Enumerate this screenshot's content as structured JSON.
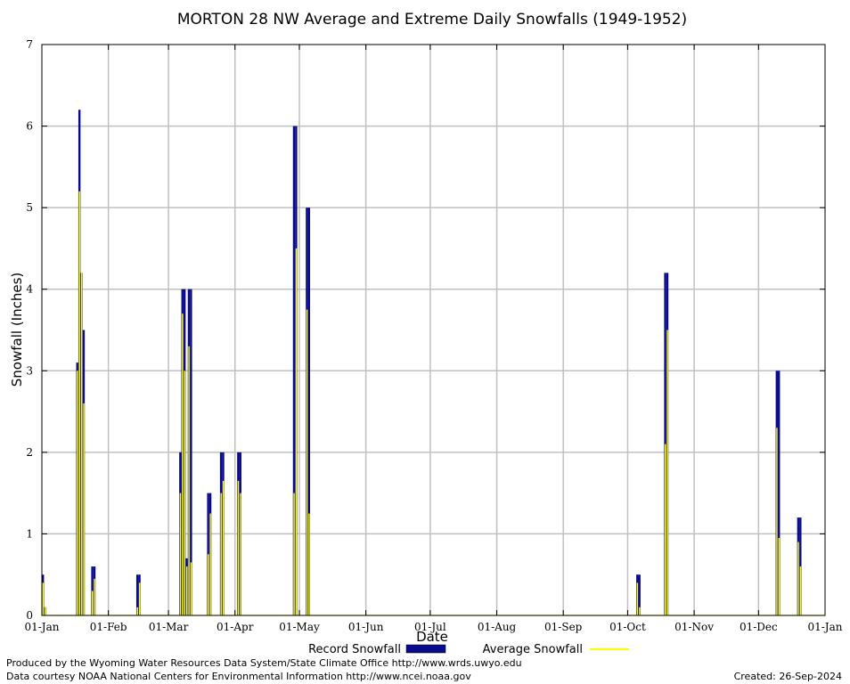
{
  "chart_data": {
    "type": "bar",
    "title": "MORTON 28 NW Average and Extreme Daily Snowfalls (1949-1952)",
    "xlabel": "Date",
    "ylabel": "Snowfall (Inches)",
    "ylim": [
      0,
      7
    ],
    "yticks": [
      "0",
      "1",
      "2",
      "3",
      "4",
      "5",
      "6",
      "7"
    ],
    "x_domain": [
      "01-Jan",
      "01-Jan"
    ],
    "xticks": [
      "01-Jan",
      "01-Feb",
      "01-Mar",
      "01-Apr",
      "01-May",
      "01-Jun",
      "01-Jul",
      "01-Aug",
      "01-Sep",
      "01-Oct",
      "01-Nov",
      "01-Dec",
      "01-Jan"
    ],
    "grid": true,
    "legend_position": "bottom",
    "legend": [
      "Record Snowfall",
      "Average Snowfall"
    ],
    "colors": {
      "record": "#0a0a8c",
      "average": "#ffff00",
      "grid": "#c0c0c0",
      "axis": "#000000"
    },
    "series": [
      {
        "name": "Record Snowfall",
        "points": [
          {
            "date": "01-Jan",
            "value": 0.5
          },
          {
            "date": "02-Jan",
            "value": 0.1
          },
          {
            "date": "17-Jan",
            "value": 3.1
          },
          {
            "date": "18-Jan",
            "value": 6.2
          },
          {
            "date": "19-Jan",
            "value": 4.2
          },
          {
            "date": "20-Jan",
            "value": 3.5
          },
          {
            "date": "24-Jan",
            "value": 0.6
          },
          {
            "date": "25-Jan",
            "value": 0.6
          },
          {
            "date": "14-Feb",
            "value": 0.5
          },
          {
            "date": "15-Feb",
            "value": 0.5
          },
          {
            "date": "06-Mar",
            "value": 2.0
          },
          {
            "date": "07-Mar",
            "value": 4.0
          },
          {
            "date": "08-Mar",
            "value": 4.0
          },
          {
            "date": "09-Mar",
            "value": 0.7
          },
          {
            "date": "10-Mar",
            "value": 4.0
          },
          {
            "date": "11-Mar",
            "value": 4.0
          },
          {
            "date": "19-Mar",
            "value": 1.5
          },
          {
            "date": "20-Mar",
            "value": 1.5
          },
          {
            "date": "25-Mar",
            "value": 2.0
          },
          {
            "date": "26-Mar",
            "value": 2.0
          },
          {
            "date": "02-Apr",
            "value": 2.0
          },
          {
            "date": "03-Apr",
            "value": 2.0
          },
          {
            "date": "28-Apr",
            "value": 6.0
          },
          {
            "date": "29-Apr",
            "value": 6.0
          },
          {
            "date": "04-May",
            "value": 5.0
          },
          {
            "date": "05-May",
            "value": 5.0
          },
          {
            "date": "05-Oct",
            "value": 0.5
          },
          {
            "date": "06-Oct",
            "value": 0.5
          },
          {
            "date": "18-Oct",
            "value": 4.2
          },
          {
            "date": "19-Oct",
            "value": 4.2
          },
          {
            "date": "09-Dec",
            "value": 3.0
          },
          {
            "date": "10-Dec",
            "value": 3.0
          },
          {
            "date": "19-Dec",
            "value": 1.2
          },
          {
            "date": "20-Dec",
            "value": 1.2
          }
        ]
      },
      {
        "name": "Average Snowfall",
        "points": [
          {
            "date": "01-Jan",
            "value": 0.4
          },
          {
            "date": "02-Jan",
            "value": 0.1
          },
          {
            "date": "17-Jan",
            "value": 3.0
          },
          {
            "date": "18-Jan",
            "value": 5.2
          },
          {
            "date": "19-Jan",
            "value": 4.2
          },
          {
            "date": "20-Jan",
            "value": 2.6
          },
          {
            "date": "24-Jan",
            "value": 0.3
          },
          {
            "date": "25-Jan",
            "value": 0.45
          },
          {
            "date": "14-Feb",
            "value": 0.1
          },
          {
            "date": "15-Feb",
            "value": 0.4
          },
          {
            "date": "06-Mar",
            "value": 1.5
          },
          {
            "date": "07-Mar",
            "value": 3.7
          },
          {
            "date": "08-Mar",
            "value": 3.0
          },
          {
            "date": "09-Mar",
            "value": 0.6
          },
          {
            "date": "10-Mar",
            "value": 3.3
          },
          {
            "date": "11-Mar",
            "value": 0.65
          },
          {
            "date": "19-Mar",
            "value": 0.75
          },
          {
            "date": "20-Mar",
            "value": 1.25
          },
          {
            "date": "25-Mar",
            "value": 1.5
          },
          {
            "date": "26-Mar",
            "value": 1.65
          },
          {
            "date": "02-Apr",
            "value": 1.65
          },
          {
            "date": "03-Apr",
            "value": 1.5
          },
          {
            "date": "28-Apr",
            "value": 1.5
          },
          {
            "date": "29-Apr",
            "value": 4.5
          },
          {
            "date": "04-May",
            "value": 3.75
          },
          {
            "date": "05-May",
            "value": 1.25
          },
          {
            "date": "05-Oct",
            "value": 0.4
          },
          {
            "date": "06-Oct",
            "value": 0.1
          },
          {
            "date": "18-Oct",
            "value": 2.1
          },
          {
            "date": "19-Oct",
            "value": 3.5
          },
          {
            "date": "09-Dec",
            "value": 2.3
          },
          {
            "date": "10-Dec",
            "value": 0.95
          },
          {
            "date": "19-Dec",
            "value": 0.9
          },
          {
            "date": "20-Dec",
            "value": 0.6
          }
        ]
      }
    ]
  },
  "footer": {
    "credit_line1": "Produced by the Wyoming Water Resources Data System/State Climate Office http://www.wrds.uwyo.edu",
    "credit_line2": "Data courtesy NOAA National Centers for Environmental Information http://www.ncei.noaa.gov",
    "created": "Created:  26-Sep-2024"
  }
}
